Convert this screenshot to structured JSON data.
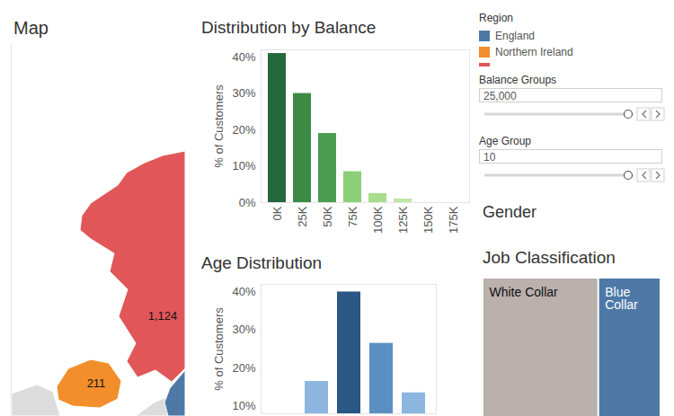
{
  "chart_data": [
    {
      "type": "map",
      "title": "Map",
      "legend_title": "Region",
      "data_labels": true,
      "series": [
        {
          "name": "England",
          "color": "#4e79a7"
        },
        {
          "name": "Northern Ireland",
          "color": "#f28e2b",
          "values": [
            211
          ],
          "value_labels": [
            "211"
          ]
        },
        {
          "name": null,
          "color": "#e15759",
          "values": [
            1124
          ],
          "value_labels": [
            "1,124"
          ]
        }
      ]
    },
    {
      "type": "bar",
      "title": "Distribution by Balance",
      "categories": [
        "0K",
        "25K",
        "50K",
        "75K",
        "100K",
        "125K",
        "150K",
        "175K"
      ],
      "values": [
        41,
        30,
        19,
        8.5,
        2.5,
        1,
        0,
        0
      ],
      "colors": [
        "#24693d",
        "#3b8a46",
        "#4b9c4f",
        "#8dcf78",
        "#a9dc8f",
        "#bfe6a4",
        "#d0edb9",
        "#d9f0c4"
      ],
      "y_label": "% of Customers",
      "ylim": [
        0,
        42
      ],
      "yticks": [
        {
          "value": 0,
          "label": "0%"
        },
        {
          "value": 10,
          "label": "10%"
        },
        {
          "value": 20,
          "label": "20%"
        },
        {
          "value": 30,
          "label": "30%"
        },
        {
          "value": 40,
          "label": "40%"
        }
      ]
    },
    {
      "type": "bar",
      "title": "Age Distribution",
      "categories": [
        null,
        null,
        null,
        null,
        null
      ],
      "values": [
        null,
        16.5,
        40,
        26.5,
        13.5
      ],
      "colors": [
        "#b7d2ec",
        "#8cb6e0",
        "#2a5783",
        "#5a8fc3",
        "#8cb6e0"
      ],
      "y_label": "% of Customers",
      "ylim": [
        8,
        42
      ],
      "yticks": [
        {
          "value": 10,
          "label": "10%"
        },
        {
          "value": 20,
          "label": "20%"
        },
        {
          "value": 30,
          "label": "30%"
        },
        {
          "value": 40,
          "label": "40%"
        }
      ],
      "tick_labels": "y"
    },
    {
      "type": "empty",
      "title": "Gender"
    },
    {
      "type": "treemap",
      "title": "Job Classification",
      "categories": [
        "White Collar",
        "Blue Collar"
      ],
      "values": [
        65,
        35
      ],
      "colors": [
        "#bab0ac",
        "#4e79a7"
      ]
    }
  ],
  "filters": [
    {
      "title": "Balance Groups",
      "value": 25000,
      "label": "25,000"
    },
    {
      "title": "Age Group",
      "value": 10,
      "label": "10"
    }
  ]
}
